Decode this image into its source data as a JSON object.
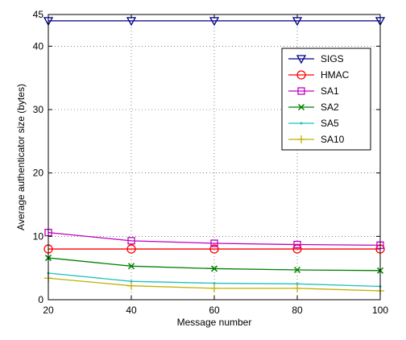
{
  "chart_data": {
    "type": "line",
    "title": "",
    "xlabel": "Message number",
    "ylabel": "Average authenticator size (bytes)",
    "x": [
      20,
      40,
      60,
      80,
      100
    ],
    "xlim": [
      20,
      100
    ],
    "ylim": [
      0,
      45
    ],
    "xticks": [
      "20",
      "40",
      "60",
      "80",
      "100"
    ],
    "yticks": [
      "0",
      "10",
      "20",
      "30",
      "40",
      "45"
    ],
    "grid": true,
    "legend_position": "top-right",
    "series": [
      {
        "name": "SIGS",
        "values": [
          44,
          44,
          44,
          44,
          44
        ],
        "color": "#00008b",
        "marker": "triangle-down"
      },
      {
        "name": "HMAC",
        "values": [
          8,
          8,
          8,
          8,
          8
        ],
        "color": "#ff0000",
        "marker": "circle"
      },
      {
        "name": "SA1",
        "values": [
          10.6,
          9.3,
          8.9,
          8.7,
          8.6
        ],
        "color": "#c000c0",
        "marker": "square"
      },
      {
        "name": "SA2",
        "values": [
          6.6,
          5.3,
          4.9,
          4.7,
          4.6
        ],
        "color": "#008000",
        "marker": "x"
      },
      {
        "name": "SA5",
        "values": [
          4.2,
          2.9,
          2.6,
          2.5,
          2.1
        ],
        "color": "#20c0c0",
        "marker": "dot"
      },
      {
        "name": "SA10",
        "values": [
          3.4,
          2.2,
          1.8,
          1.8,
          1.4
        ],
        "color": "#c0b000",
        "marker": "plus"
      }
    ]
  }
}
